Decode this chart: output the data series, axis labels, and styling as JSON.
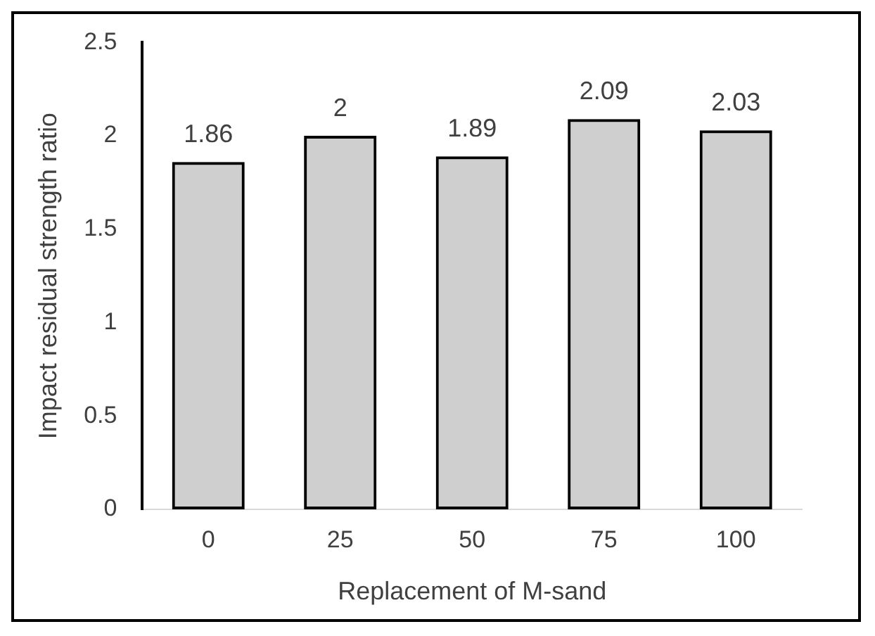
{
  "chart_data": {
    "type": "bar",
    "xlabel": "Replacement of M-sand",
    "ylabel": "Impact residual strength ratio",
    "categories": [
      "0",
      "25",
      "50",
      "75",
      "100"
    ],
    "values": [
      1.86,
      2,
      1.89,
      2.09,
      2.03
    ],
    "color": "#000000",
    "ylim": [
      0,
      2.5
    ],
    "yticks": [
      0,
      0.5,
      1,
      1.5,
      2,
      2.5
    ],
    "grid": false,
    "legend": false,
    "data_labels": true
  }
}
